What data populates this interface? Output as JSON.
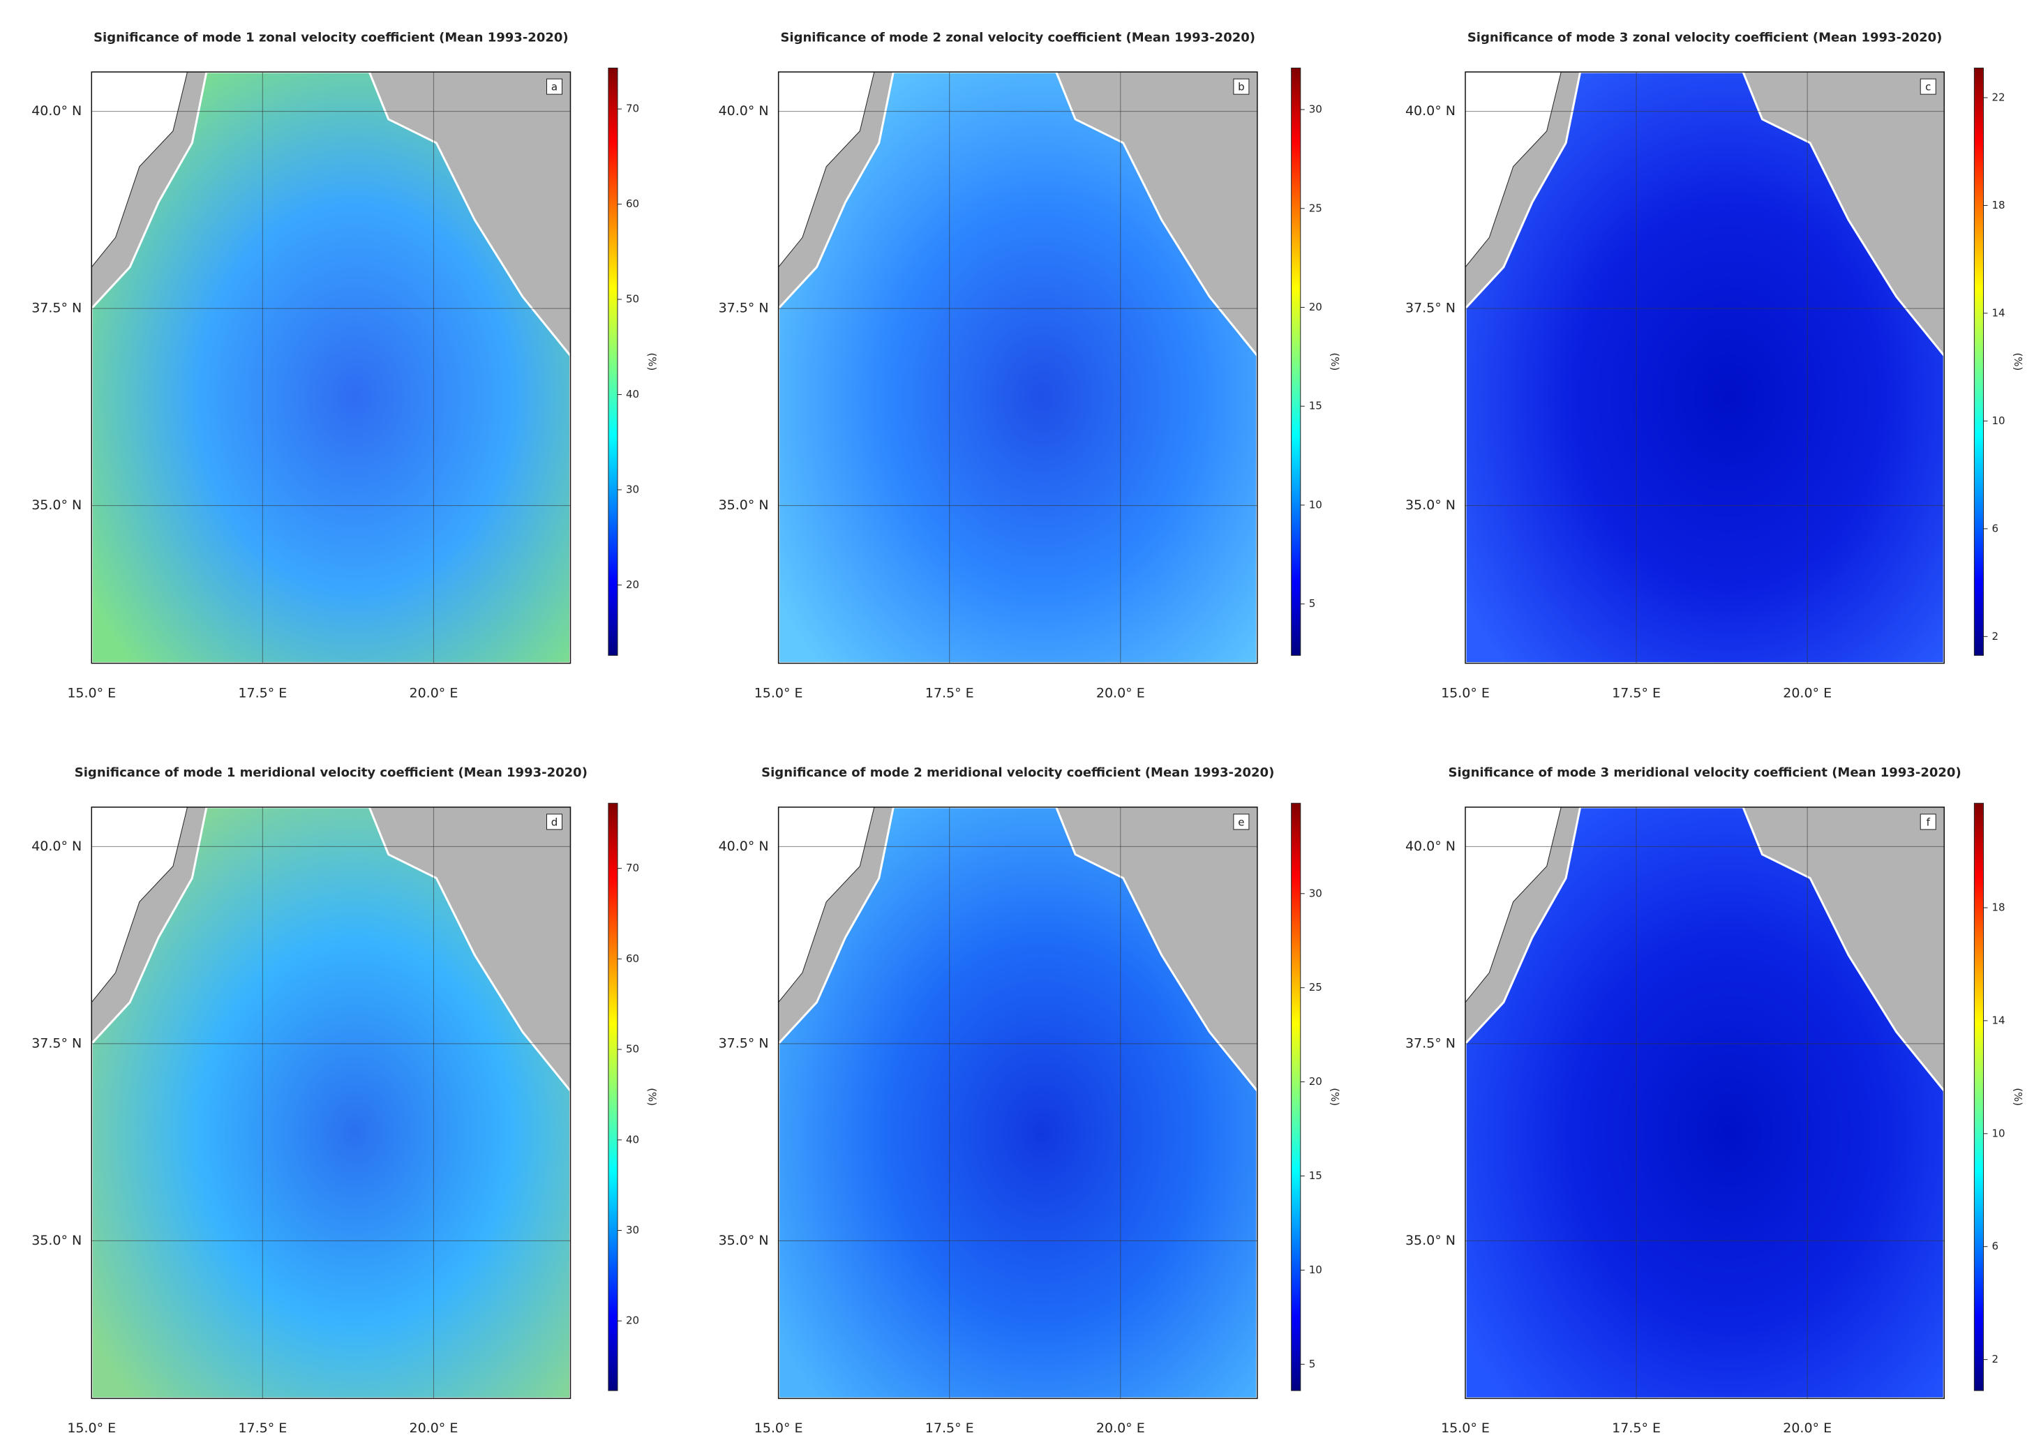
{
  "chart_data": [
    {
      "type": "heatmap",
      "title": "Significance of mode 1 zonal velocity coefficient (Mean 1993-2020)",
      "panel_label": "a",
      "xlim": [
        15,
        22
      ],
      "ylim": [
        33,
        40.5
      ],
      "xticks": [
        {
          "value": 15,
          "label": "15.0° E"
        },
        {
          "value": 17.5,
          "label": "17.5° E"
        },
        {
          "value": 20,
          "label": "20.0° E"
        }
      ],
      "yticks": [
        {
          "value": 35,
          "label": "35.0° N"
        },
        {
          "value": 37.5,
          "label": "37.5° N"
        },
        {
          "value": 40,
          "label": "40.0° N"
        }
      ],
      "colorbar_label": "(%)",
      "clim": [
        12.6,
        74.3
      ],
      "cticks": [
        20,
        30,
        40,
        50,
        60,
        70
      ],
      "colormap": "jet",
      "grid": true
    },
    {
      "type": "heatmap",
      "title": "Significance of mode 2 zonal velocity coefficient (Mean 1993-2020)",
      "panel_label": "b",
      "xlim": [
        15,
        22
      ],
      "ylim": [
        33,
        40.5
      ],
      "xticks": [
        {
          "value": 15,
          "label": "15.0° E"
        },
        {
          "value": 17.5,
          "label": "17.5° E"
        },
        {
          "value": 20,
          "label": "20.0° E"
        }
      ],
      "yticks": [
        {
          "value": 35,
          "label": "35.0° N"
        },
        {
          "value": 37.5,
          "label": "37.5° N"
        },
        {
          "value": 40,
          "label": "40.0° N"
        }
      ],
      "colorbar_label": "(%)",
      "clim": [
        2.4,
        32.1
      ],
      "cticks": [
        5,
        10,
        15,
        20,
        25,
        30
      ],
      "colormap": "jet",
      "grid": true
    },
    {
      "type": "heatmap",
      "title": "Significance of mode 3 zonal velocity coefficient (Mean 1993-2020)",
      "panel_label": "c",
      "xlim": [
        15,
        22
      ],
      "ylim": [
        33,
        40.5
      ],
      "xticks": [
        {
          "value": 15,
          "label": "15.0° E"
        },
        {
          "value": 17.5,
          "label": "17.5° E"
        },
        {
          "value": 20,
          "label": "20.0° E"
        }
      ],
      "yticks": [
        {
          "value": 35,
          "label": "35.0° N"
        },
        {
          "value": 37.5,
          "label": "37.5° N"
        },
        {
          "value": 40,
          "label": "40.0° N"
        }
      ],
      "colorbar_label": "(%)",
      "clim": [
        1.3,
        23.1
      ],
      "cticks": [
        2,
        6,
        10,
        14,
        18,
        22
      ],
      "colormap": "jet",
      "grid": true
    },
    {
      "type": "heatmap",
      "title": "Significance of mode 1 meridional velocity coefficient (Mean 1993-2020)",
      "panel_label": "d",
      "xlim": [
        15,
        22
      ],
      "ylim": [
        33,
        40.5
      ],
      "xticks": [
        {
          "value": 15,
          "label": "15.0° E"
        },
        {
          "value": 17.5,
          "label": "17.5° E"
        },
        {
          "value": 20,
          "label": "20.0° E"
        }
      ],
      "yticks": [
        {
          "value": 35,
          "label": "35.0° N"
        },
        {
          "value": 37.5,
          "label": "37.5° N"
        },
        {
          "value": 40,
          "label": "40.0° N"
        }
      ],
      "colorbar_label": "(%)",
      "clim": [
        12.3,
        77.2
      ],
      "cticks": [
        20,
        30,
        40,
        50,
        60,
        70
      ],
      "colormap": "jet",
      "grid": true
    },
    {
      "type": "heatmap",
      "title": "Significance of mode 2 meridional velocity coefficient (Mean 1993-2020)",
      "panel_label": "e",
      "xlim": [
        15,
        22
      ],
      "ylim": [
        33,
        40.5
      ],
      "xticks": [
        {
          "value": 15,
          "label": "15.0° E"
        },
        {
          "value": 17.5,
          "label": "17.5° E"
        },
        {
          "value": 20,
          "label": "20.0° E"
        }
      ],
      "yticks": [
        {
          "value": 35,
          "label": "35.0° N"
        },
        {
          "value": 37.5,
          "label": "37.5° N"
        },
        {
          "value": 40,
          "label": "40.0° N"
        }
      ],
      "colorbar_label": "(%)",
      "clim": [
        3.6,
        34.8
      ],
      "cticks": [
        5,
        10,
        15,
        20,
        25,
        30
      ],
      "colormap": "jet",
      "grid": true
    },
    {
      "type": "heatmap",
      "title": "Significance of mode 3 meridional velocity coefficient (Mean 1993-2020)",
      "panel_label": "f",
      "xlim": [
        15,
        22
      ],
      "ylim": [
        33,
        40.5
      ],
      "xticks": [
        {
          "value": 15,
          "label": "15.0° E"
        },
        {
          "value": 17.5,
          "label": "17.5° E"
        },
        {
          "value": 20,
          "label": "20.0° E"
        }
      ],
      "yticks": [
        {
          "value": 35,
          "label": "35.0° N"
        },
        {
          "value": 37.5,
          "label": "37.5° N"
        },
        {
          "value": 40,
          "label": "40.0° N"
        }
      ],
      "colorbar_label": "(%)",
      "clim": [
        0.9,
        21.7
      ],
      "cticks": [
        2,
        6,
        10,
        14,
        18
      ],
      "colormap": "jet",
      "grid": true
    }
  ]
}
